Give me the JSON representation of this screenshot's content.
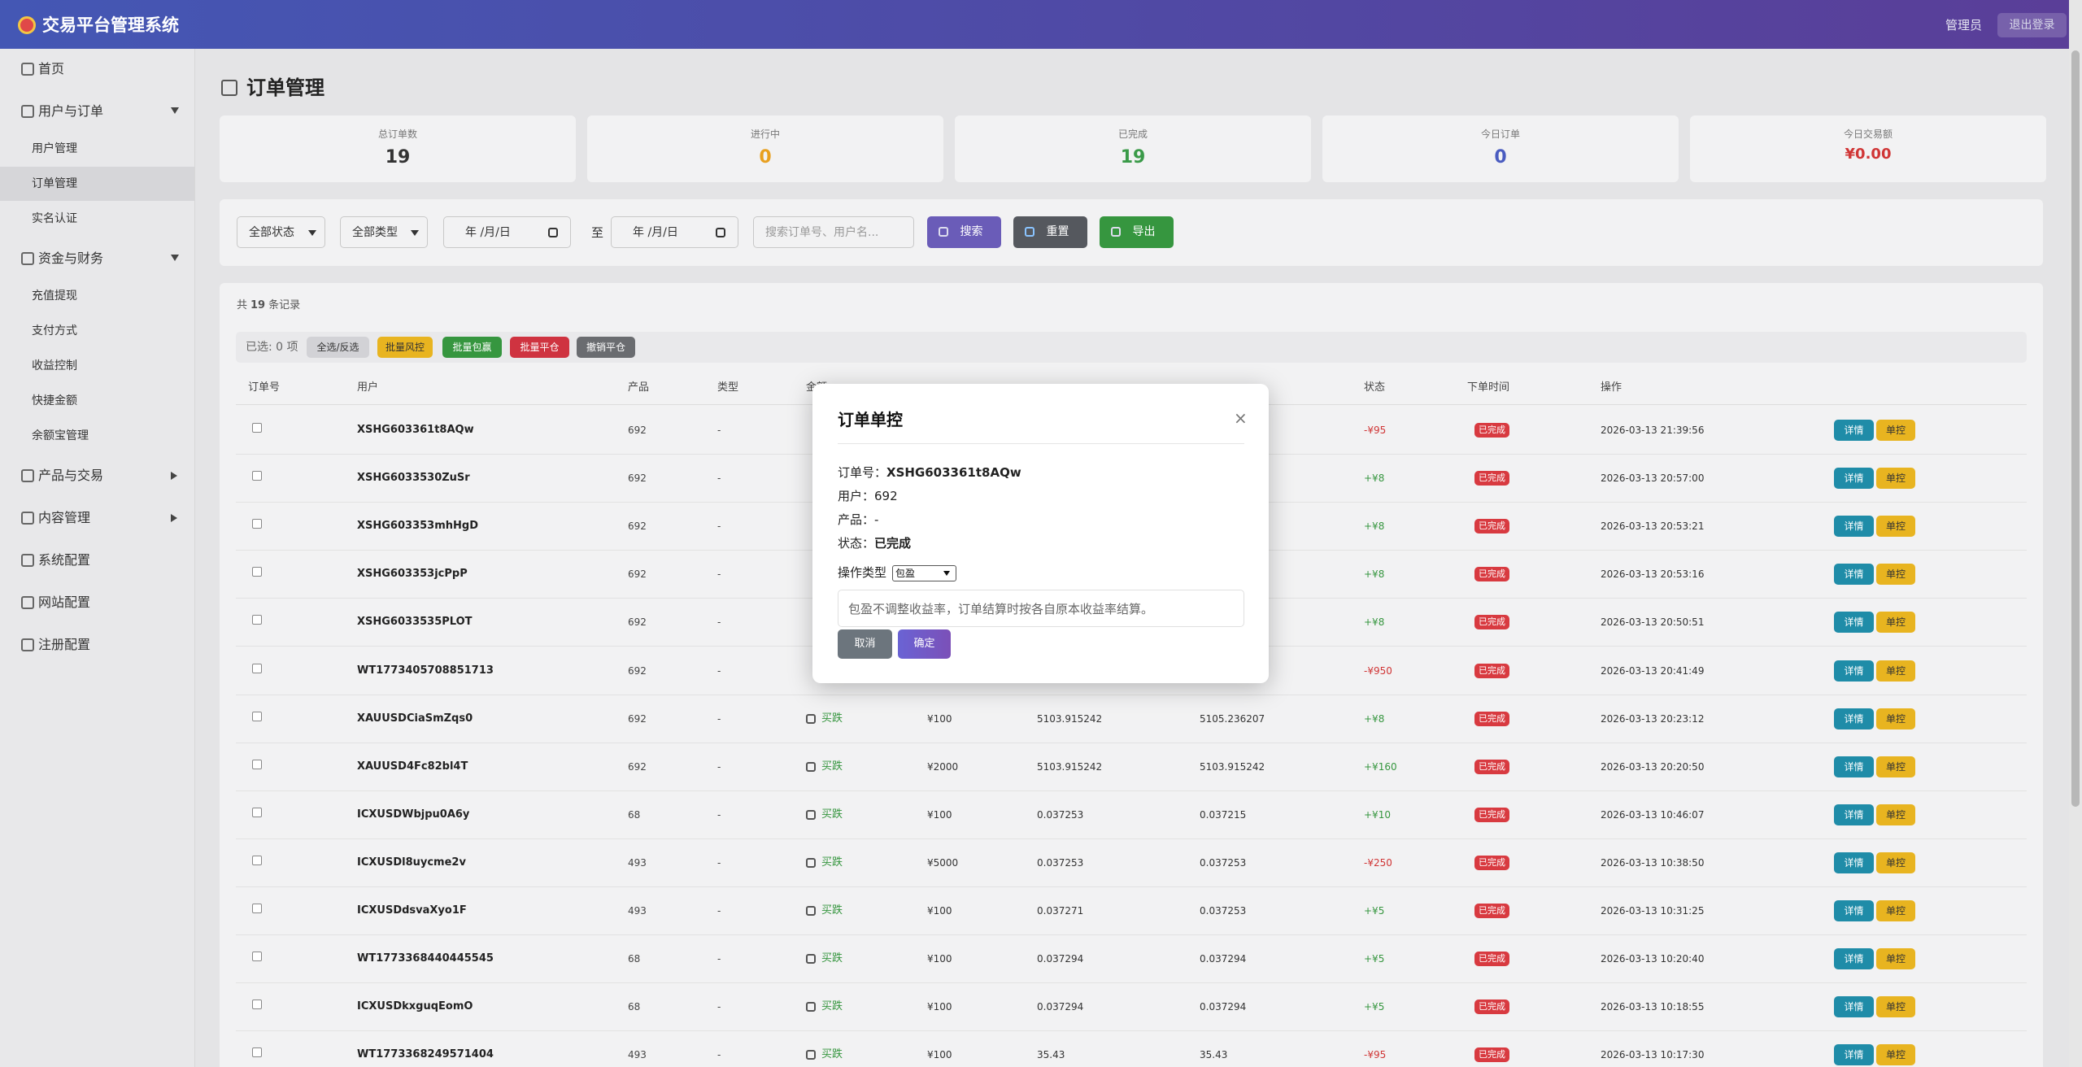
{
  "header": {
    "title": "交易平台管理系统",
    "user": "管理员",
    "logout": "退出登录"
  },
  "sidebar": {
    "items": [
      {
        "label": "首页"
      },
      {
        "label": "用户与订单",
        "expanded": true,
        "children": [
          {
            "label": "用户管理"
          },
          {
            "label": "订单管理",
            "active": true
          },
          {
            "label": "实名认证"
          }
        ]
      },
      {
        "label": "资金与财务",
        "expanded": true,
        "children": [
          {
            "label": "充值提现"
          },
          {
            "label": "支付方式"
          },
          {
            "label": "收益控制"
          },
          {
            "label": "快捷金额"
          },
          {
            "label": "余额宝管理"
          }
        ]
      },
      {
        "label": "产品与交易",
        "expanded": false
      },
      {
        "label": "内容管理",
        "expanded": false
      },
      {
        "label": "系统配置"
      },
      {
        "label": "网站配置"
      },
      {
        "label": "注册配置"
      }
    ]
  },
  "page_title": "订单管理",
  "stats": [
    {
      "label": "总订单数",
      "value": 19,
      "color": "#333333"
    },
    {
      "label": "进行中",
      "value": 0,
      "color": "#e8a020"
    },
    {
      "label": "已完成",
      "value": 19,
      "color": "#3a9a48"
    },
    {
      "label": "今日订单",
      "value": 0,
      "color": "#4a5cc0"
    },
    {
      "label": "今日交易额",
      "value": "¥0.00",
      "color": "#d03535"
    }
  ],
  "filters": {
    "status": "全部状态",
    "type": "全部类型",
    "date_from": "年 /月/日",
    "to": "至",
    "date_to": "年 /月/日",
    "search_placeholder": "搜索订单号、用户名...",
    "buttons": [
      "搜索",
      "重置",
      "导出"
    ]
  },
  "records": {
    "prefix": "共",
    "count": 19,
    "suffix": "条记录"
  },
  "batch": {
    "selected": "已选: 0 项",
    "buttons": [
      "全选/反选",
      "批量风控",
      "批量包赢",
      "批量平仓",
      "撤销平仓"
    ]
  },
  "table": {
    "headers": [
      "订单号",
      "用户",
      "产品",
      "类型",
      "金额",
      "状态",
      "下单时间",
      "操作"
    ],
    "actions": [
      "详情",
      "单控"
    ],
    "rows": [
      {
        "order_no": "XSHG603361t8AQw",
        "user": 692,
        "product": "-",
        "direction": null,
        "amount": null,
        "open_price": null,
        "close_price": null,
        "pnl": "-¥95",
        "status": "已完成",
        "time": "2026-03-13 21:39:56"
      },
      {
        "order_no": "XSHG6033530ZuSr",
        "user": 692,
        "product": "-",
        "direction": null,
        "amount": null,
        "open_price": null,
        "close_price": null,
        "pnl": "+¥8",
        "status": "已完成",
        "time": "2026-03-13 20:57:00"
      },
      {
        "order_no": "XSHG603353mhHgD",
        "user": 692,
        "product": "-",
        "direction": null,
        "amount": null,
        "open_price": null,
        "close_price": null,
        "pnl": "+¥8",
        "status": "已完成",
        "time": "2026-03-13 20:53:21"
      },
      {
        "order_no": "XSHG603353jcPpP",
        "user": 692,
        "product": "-",
        "direction": null,
        "amount": null,
        "open_price": null,
        "close_price": null,
        "pnl": "+¥8",
        "status": "已完成",
        "time": "2026-03-13 20:53:16"
      },
      {
        "order_no": "XSHG6033535PLOT",
        "user": 692,
        "product": "-",
        "direction": null,
        "amount": null,
        "open_price": null,
        "close_price": null,
        "pnl": "+¥8",
        "status": "已完成",
        "time": "2026-03-13 20:50:51"
      },
      {
        "order_no": "WT1773405708851713",
        "user": 692,
        "product": "-",
        "direction": null,
        "amount": null,
        "open_price": null,
        "close_price": null,
        "pnl": "-¥950",
        "status": "已完成",
        "time": "2026-03-13 20:41:49"
      },
      {
        "order_no": "XAUUSDCiaSmZqs0",
        "user": 692,
        "product": "-",
        "direction": "买跌",
        "amount": "¥100",
        "open_price": "5103.915242",
        "close_price": "5105.236207",
        "pnl": "+¥8",
        "status": "已完成",
        "time": "2026-03-13 20:23:12"
      },
      {
        "order_no": "XAUUSD4Fc82bl4T",
        "user": 692,
        "product": "-",
        "direction": "买跌",
        "amount": "¥2000",
        "open_price": "5103.915242",
        "close_price": "5103.915242",
        "pnl": "+¥160",
        "status": "已完成",
        "time": "2026-03-13 20:20:50"
      },
      {
        "order_no": "ICXUSDWbjpu0A6y",
        "user": 68,
        "product": "-",
        "direction": "买跌",
        "amount": "¥100",
        "open_price": "0.037253",
        "close_price": "0.037215",
        "pnl": "+¥10",
        "status": "已完成",
        "time": "2026-03-13 10:46:07"
      },
      {
        "order_no": "ICXUSDl8uycme2v",
        "user": 493,
        "product": "-",
        "direction": "买跌",
        "amount": "¥5000",
        "open_price": "0.037253",
        "close_price": "0.037253",
        "pnl": "-¥250",
        "status": "已完成",
        "time": "2026-03-13 10:38:50"
      },
      {
        "order_no": "ICXUSDdsvaXyo1F",
        "user": 493,
        "product": "-",
        "direction": "买跌",
        "amount": "¥100",
        "open_price": "0.037271",
        "close_price": "0.037253",
        "pnl": "+¥5",
        "status": "已完成",
        "time": "2026-03-13 10:31:25"
      },
      {
        "order_no": "WT1773368440445545",
        "user": 68,
        "product": "-",
        "direction": "买跌",
        "amount": "¥100",
        "open_price": "0.037294",
        "close_price": "0.037294",
        "pnl": "+¥5",
        "status": "已完成",
        "time": "2026-03-13 10:20:40"
      },
      {
        "order_no": "ICXUSDkxguqEomO",
        "user": 68,
        "product": "-",
        "direction": "买跌",
        "amount": "¥100",
        "open_price": "0.037294",
        "close_price": "0.037294",
        "pnl": "+¥5",
        "status": "已完成",
        "time": "2026-03-13 10:18:55"
      },
      {
        "order_no": "WT1773368249571404",
        "user": 493,
        "product": "-",
        "direction": "买跌",
        "amount": "¥100",
        "open_price": "35.43",
        "close_price": "35.43",
        "pnl": "-¥95",
        "status": "已完成",
        "time": "2026-03-13 10:17:30"
      }
    ]
  },
  "modal": {
    "title": "订单单控",
    "close": "×",
    "fields": [
      {
        "label": "订单号：",
        "value": "XSHG603361t8AQw"
      },
      {
        "label": "用户：",
        "value": 692
      },
      {
        "label": "产品：",
        "value": "-"
      },
      {
        "label": "状态：",
        "value": "已完成"
      }
    ],
    "op_label": "操作类型",
    "op_value": "包盈",
    "note": "包盈不调整收益率，订单结算时按各自原本收益率结算。",
    "buttons": [
      "取消",
      "确定"
    ]
  }
}
